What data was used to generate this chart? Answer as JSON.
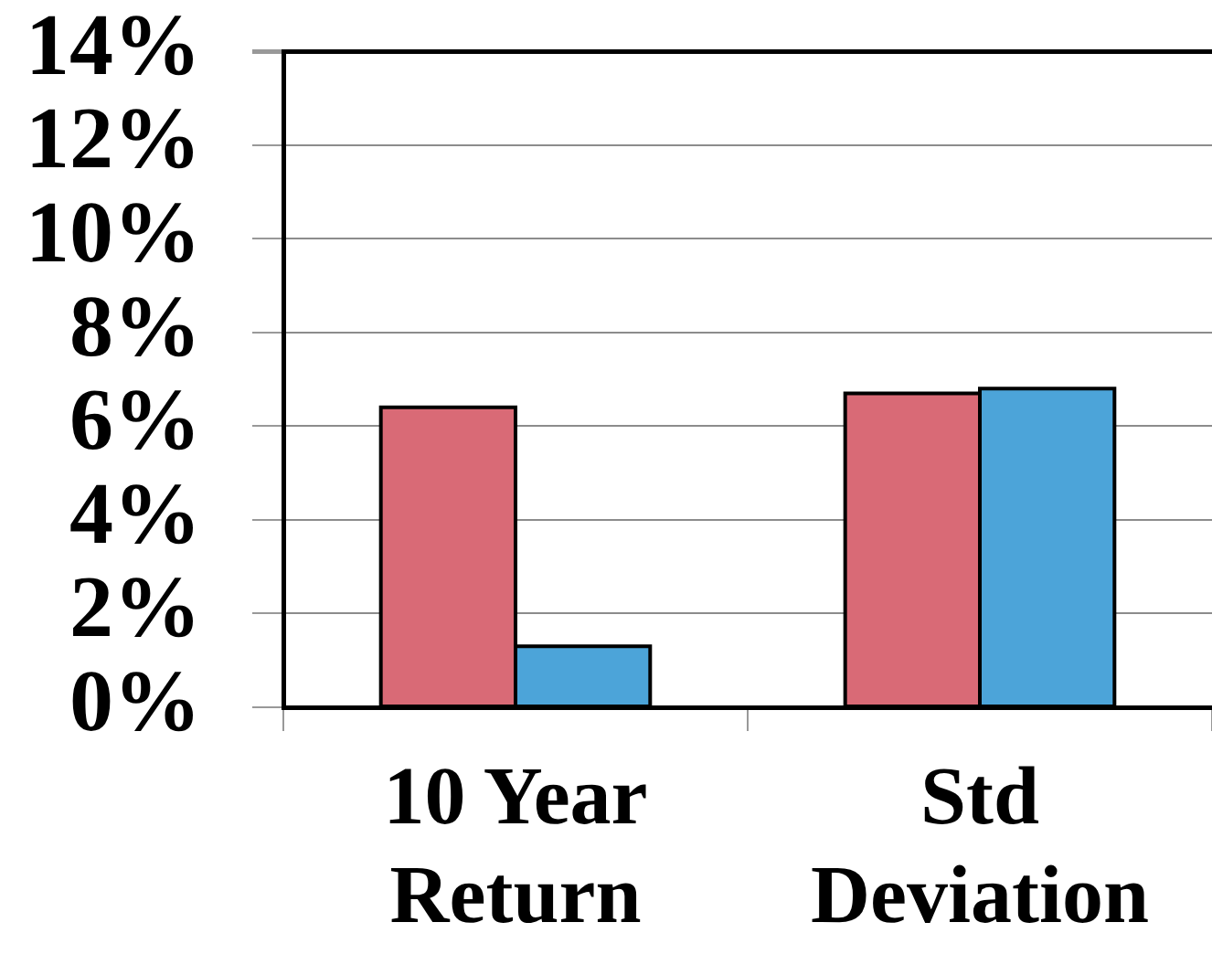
{
  "chart_data": {
    "type": "bar",
    "categories": [
      "10 Year Return",
      "Std Deviation"
    ],
    "series": [
      {
        "color": "#d96a76",
        "values": [
          6.4,
          6.7
        ]
      },
      {
        "color": "#4ca4d9",
        "values": [
          1.3,
          6.8
        ]
      }
    ],
    "ylim": [
      0,
      14
    ],
    "yticks": [
      {
        "value": 0,
        "label": "0%"
      },
      {
        "value": 2,
        "label": "2%"
      },
      {
        "value": 4,
        "label": "4%"
      },
      {
        "value": 6,
        "label": "6%"
      },
      {
        "value": 8,
        "label": "8%"
      },
      {
        "value": 10,
        "label": "10%"
      },
      {
        "value": 12,
        "label": "12%"
      },
      {
        "value": 14,
        "label": "14%"
      }
    ],
    "grid": "y",
    "legend": false
  }
}
